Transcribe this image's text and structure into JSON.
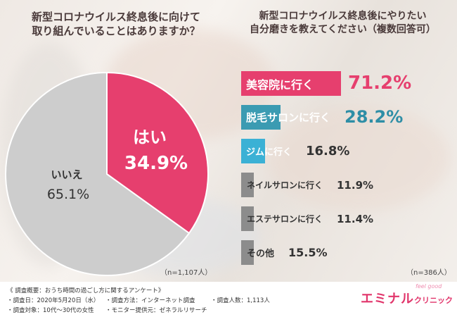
{
  "left_question": {
    "line1": "新型コロナウイルス終息後に向けて",
    "line2": "取り組んでいることはありますか？"
  },
  "right_question": {
    "line1": "新型コロナウイルス終息後にやりたい",
    "line2": "自分磨きを教えてください（複数回答可）"
  },
  "colors": {
    "yes": "#e63f6e",
    "no": "#cdcdcd",
    "beauty": "#e63f6e",
    "hair_removal": "#3b9bb2",
    "gym": "#3bb1d5",
    "other_bars": "#8c8c8c",
    "pink_text": "#e63f6e",
    "teal_text": "#2e8ea6",
    "gray_text": "#333333"
  },
  "chart_data": [
    {
      "type": "pie",
      "labels": [
        "はい",
        "いいえ"
      ],
      "values": [
        34.9,
        65.1
      ],
      "value_labels": [
        "34.9%",
        "65.1%"
      ],
      "n_label": "（n=1,107人）"
    },
    {
      "type": "bar",
      "categories": [
        "美容院に行く",
        "脱毛サロンに行く",
        "ジムに行く",
        "ネイルサロンに行く",
        "エステサロンに行く",
        "その他"
      ],
      "values": [
        71.2,
        28.2,
        16.8,
        11.9,
        11.4,
        15.5
      ],
      "value_labels": [
        "71.2%",
        "28.2%",
        "16.8%",
        "11.9%",
        "11.4%",
        "15.5%"
      ],
      "n_label": "（n=386人）"
    }
  ],
  "footer": {
    "title": "《 調査概要：おうち時間の過ごし方に関するアンケート》",
    "date": "・調査日：2020年5月20日（水）",
    "method": "・調査方法：インターネット調査",
    "count": "・調査人数：1,113人",
    "target": "・調査対象：10代〜30代の女性",
    "provider": "・モニター提供元：ゼネラルリサーチ"
  },
  "brand": {
    "name": "エミナル",
    "suffix": "クリニック",
    "tag": "feel good"
  }
}
